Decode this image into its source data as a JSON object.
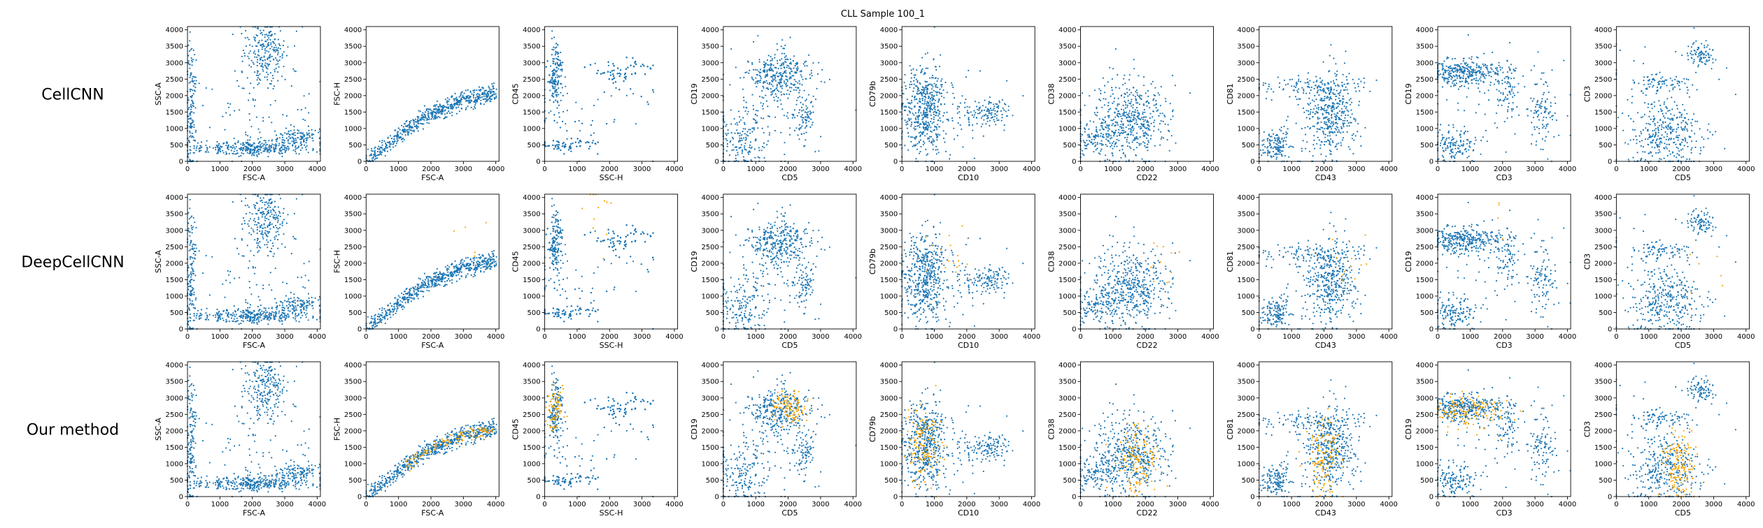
{
  "figure": {
    "title": "CLL Sample 100_1",
    "methods": [
      "CellCNN",
      "DeepCellCNN",
      "Our method"
    ]
  },
  "colors": {
    "cells": "#1f77b4",
    "selected": "#ffa500"
  },
  "chart_data": {
    "type": "scatter",
    "title": "CLL Sample 100_1",
    "x_ticks": [
      "0",
      "1000",
      "2000",
      "3000",
      "4000"
    ],
    "y_ticks": [
      "0",
      "500",
      "1000",
      "1500",
      "2000",
      "2500",
      "3000",
      "3500",
      "4000"
    ],
    "xlim": [
      0,
      4100
    ],
    "ylim": [
      0,
      4100
    ],
    "rows": [
      "CellCNN",
      "DeepCellCNN",
      "Our method"
    ],
    "panels": [
      {
        "xlabel": "FSC-A",
        "ylabel": "SSC-A",
        "clusters": [
          {
            "n": 150,
            "cx": 120,
            "cy": 1500,
            "sx": 80,
            "sy": 1100
          },
          {
            "n": 230,
            "cx": 2400,
            "cy": 3300,
            "sx": 300,
            "sy": 450
          },
          {
            "n": 330,
            "cx": 2000,
            "cy": 400,
            "sx": 900,
            "sy": 120
          },
          {
            "n": 110,
            "cx": 3400,
            "cy": 750,
            "sx": 350,
            "sy": 150
          },
          {
            "n": 80,
            "cx": 2000,
            "cy": 1600,
            "sx": 1000,
            "sy": 800
          }
        ],
        "selected": [
          0,
          0,
          0
        ],
        "selected_cluster": {
          "cx": 2000,
          "cy": 520,
          "sx": 600,
          "sy": 120
        }
      },
      {
        "xlabel": "FSC-A",
        "ylabel": "FSC-H",
        "curve": {
          "n": 650,
          "points": [
            [
              0,
              0
            ],
            [
              1000,
              800
            ],
            [
              2000,
              1450
            ],
            [
              3000,
              1850
            ],
            [
              4000,
              2050
            ]
          ],
          "spread": 130
        },
        "selected": [
          0,
          5,
          110
        ]
      },
      {
        "xlabel": "SSC-H",
        "ylabel": "CD45",
        "clusters": [
          {
            "n": 230,
            "cx": 350,
            "cy": 2600,
            "sx": 120,
            "sy": 600
          },
          {
            "n": 260,
            "cx": 2500,
            "cy": 2750,
            "sx": 500,
            "sy": 250
          },
          {
            "n": 180,
            "cx": 800,
            "cy": 500,
            "sx": 500,
            "sy": 120
          },
          {
            "n": 80,
            "cx": 1500,
            "cy": 1500,
            "sx": 1100,
            "sy": 900
          }
        ],
        "selected": [
          0,
          12,
          70
        ],
        "selected_cluster": {
          "cx": 350,
          "cy": 2700,
          "sx": 120,
          "sy": 400
        }
      },
      {
        "xlabel": "CD5",
        "ylabel": "CD19",
        "clusters": [
          {
            "n": 300,
            "cx": 1700,
            "cy": 2650,
            "sx": 500,
            "sy": 350
          },
          {
            "n": 180,
            "cx": 600,
            "cy": 700,
            "sx": 400,
            "sy": 500
          },
          {
            "n": 90,
            "cx": 2400,
            "cy": 1400,
            "sx": 200,
            "sy": 500
          },
          {
            "n": 70,
            "cx": 1500,
            "cy": 1500,
            "sx": 900,
            "sy": 900
          }
        ],
        "selected": [
          0,
          0,
          100
        ],
        "selected_cluster": {
          "cx": 2000,
          "cy": 2700,
          "sx": 300,
          "sy": 250
        }
      },
      {
        "xlabel": "CD10",
        "ylabel": "CD79b",
        "clusters": [
          {
            "n": 480,
            "cx": 700,
            "cy": 1600,
            "sx": 350,
            "sy": 650
          },
          {
            "n": 120,
            "cx": 2700,
            "cy": 1500,
            "sx": 350,
            "sy": 220
          },
          {
            "n": 60,
            "cx": 1500,
            "cy": 1200,
            "sx": 900,
            "sy": 900
          }
        ],
        "selected": [
          0,
          18,
          130
        ],
        "selected_cluster": {
          "cx": 700,
          "cy": 1550,
          "sx": 280,
          "sy": 550
        }
      },
      {
        "xlabel": "CD22",
        "ylabel": "CD38",
        "clusters": [
          {
            "n": 420,
            "cx": 1500,
            "cy": 1200,
            "sx": 550,
            "sy": 600
          },
          {
            "n": 120,
            "cx": 500,
            "cy": 700,
            "sx": 350,
            "sy": 300
          },
          {
            "n": 60,
            "cx": 1500,
            "cy": 1800,
            "sx": 900,
            "sy": 900
          }
        ],
        "selected": [
          0,
          12,
          130
        ],
        "selected_cluster": {
          "cx": 1800,
          "cy": 1100,
          "sx": 300,
          "sy": 550
        }
      },
      {
        "xlabel": "CD43",
        "ylabel": "CD81",
        "clusters": [
          {
            "n": 380,
            "cx": 2200,
            "cy": 1400,
            "sx": 350,
            "sy": 650
          },
          {
            "n": 130,
            "cx": 500,
            "cy": 500,
            "sx": 200,
            "sy": 250
          },
          {
            "n": 90,
            "cx": 1500,
            "cy": 2300,
            "sx": 900,
            "sy": 150
          },
          {
            "n": 60,
            "cx": 1500,
            "cy": 1200,
            "sx": 900,
            "sy": 900
          }
        ],
        "selected": [
          0,
          12,
          130
        ],
        "selected_cluster": {
          "cx": 2000,
          "cy": 1100,
          "sx": 250,
          "sy": 650
        }
      },
      {
        "xlabel": "CD3",
        "ylabel": "CD19",
        "clusters": [
          {
            "n": 330,
            "cx": 800,
            "cy": 2700,
            "sx": 600,
            "sy": 220
          },
          {
            "n": 140,
            "cx": 500,
            "cy": 500,
            "sx": 350,
            "sy": 300
          },
          {
            "n": 90,
            "cx": 3200,
            "cy": 1500,
            "sx": 200,
            "sy": 500
          },
          {
            "n": 70,
            "cx": 2200,
            "cy": 2200,
            "sx": 200,
            "sy": 500
          },
          {
            "n": 60,
            "cx": 1800,
            "cy": 1500,
            "sx": 1000,
            "sy": 900
          }
        ],
        "selected": [
          0,
          4,
          140
        ],
        "selected_cluster": {
          "cx": 900,
          "cy": 2600,
          "sx": 550,
          "sy": 250
        }
      },
      {
        "xlabel": "CD5",
        "ylabel": "CD3",
        "clusters": [
          {
            "n": 330,
            "cx": 1500,
            "cy": 800,
            "sx": 550,
            "sy": 550
          },
          {
            "n": 90,
            "cx": 2600,
            "cy": 3200,
            "sx": 200,
            "sy": 180
          },
          {
            "n": 70,
            "cx": 1400,
            "cy": 2400,
            "sx": 500,
            "sy": 120
          },
          {
            "n": 50,
            "cx": 1500,
            "cy": 1800,
            "sx": 1000,
            "sy": 900
          }
        ],
        "selected": [
          0,
          6,
          150
        ],
        "selected_cluster": {
          "cx": 1950,
          "cy": 900,
          "sx": 250,
          "sy": 550
        }
      }
    ]
  }
}
